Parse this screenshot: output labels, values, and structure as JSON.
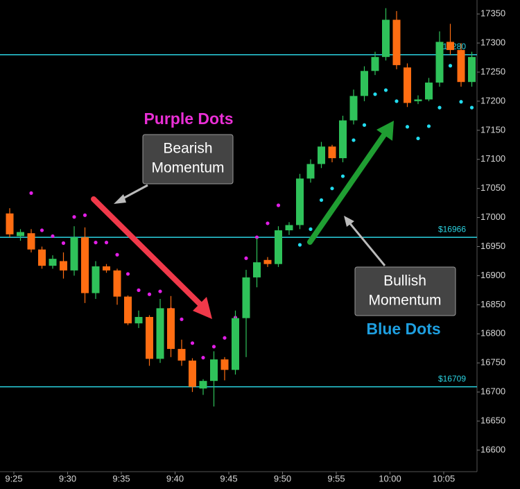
{
  "chart_data": {
    "type": "candlestick",
    "categories": [
      "9:25",
      null,
      null,
      null,
      null,
      "9:30",
      null,
      null,
      null,
      null,
      "9:35",
      null,
      null,
      null,
      null,
      "9:40",
      null,
      null,
      null,
      null,
      "9:45",
      null,
      null,
      null,
      null,
      "9:50",
      null,
      null,
      null,
      null,
      "9:55",
      null,
      null,
      null,
      null,
      "10:00",
      null,
      null,
      null,
      null,
      "10:05",
      null,
      null,
      null
    ],
    "open": [
      17007,
      16968,
      16973,
      16945,
      16917,
      16925,
      16909,
      16966,
      16870,
      16916,
      16909,
      16864,
      16818,
      16829,
      16757,
      16844,
      16774,
      16754,
      16706,
      16719,
      16756,
      16738,
      16827,
      16897,
      16927,
      16920,
      16978,
      16987,
      17067,
      17092,
      17122,
      17102,
      17167,
      17209,
      17252,
      17276,
      17340,
      17258,
      17200,
      17203,
      17232,
      17302,
      17288,
      17233
    ],
    "high": [
      17016,
      16980,
      16980,
      16950,
      16935,
      16940,
      16985,
      16983,
      16925,
      16920,
      16912,
      16866,
      16840,
      16832,
      16860,
      16865,
      16790,
      16758,
      16722,
      16770,
      16760,
      16840,
      16910,
      16965,
      16932,
      16985,
      16992,
      17075,
      17100,
      17130,
      17125,
      17175,
      17220,
      17260,
      17285,
      17360,
      17355,
      17265,
      17210,
      17240,
      17320,
      17333,
      17300,
      17285
    ],
    "low": [
      16966,
      16960,
      16940,
      16912,
      16912,
      16895,
      16900,
      16853,
      16860,
      16905,
      16850,
      16815,
      16810,
      16745,
      16750,
      16760,
      16745,
      16700,
      16695,
      16675,
      16720,
      16730,
      16760,
      16880,
      16915,
      16915,
      16970,
      16980,
      17060,
      17085,
      17095,
      17095,
      17160,
      17200,
      17245,
      17270,
      17255,
      17190,
      17195,
      17200,
      17225,
      17280,
      17225,
      17225
    ],
    "close": [
      16971,
      16975,
      16945,
      16917,
      16929,
      16909,
      16966,
      16870,
      16916,
      16909,
      16864,
      16818,
      16829,
      16757,
      16844,
      16774,
      16754,
      16709,
      16719,
      16756,
      16738,
      16827,
      16897,
      16923,
      16920,
      16978,
      16987,
      17067,
      17092,
      17122,
      17102,
      17167,
      17209,
      17252,
      17276,
      17340,
      17262,
      17197,
      17203,
      17232,
      17302,
      17288,
      17233,
      17276
    ],
    "up_color": "#2fc25a",
    "down_color": "#ff6d12",
    "bearish_dots": {
      "color": "#e11ee6",
      "values": [
        null,
        null,
        17042,
        16978,
        16968,
        16956,
        17001,
        17004,
        16957,
        16957,
        16936,
        16903,
        16875,
        16868,
        16873,
        16842,
        16825,
        16784,
        16759,
        16778,
        16793,
        16828,
        16930,
        16966,
        16990,
        17021,
        null,
        null,
        null,
        null,
        null,
        null,
        null,
        null,
        null,
        null,
        null,
        null,
        null,
        null,
        null,
        null,
        null,
        null
      ]
    },
    "bullish_dots": {
      "color": "#22dcef",
      "values": [
        null,
        null,
        null,
        null,
        null,
        null,
        null,
        null,
        null,
        null,
        null,
        null,
        null,
        null,
        null,
        null,
        null,
        null,
        null,
        null,
        null,
        null,
        null,
        null,
        null,
        null,
        null,
        16953,
        16980,
        17030,
        17050,
        17071,
        17133,
        17159,
        17212,
        17219,
        17200,
        17156,
        17136,
        17157,
        17189,
        17261,
        17199,
        17189
      ]
    },
    "levels": {
      "color": "#2bd4e2",
      "values": [
        {
          "value": 17280,
          "label": "$17280"
        },
        {
          "value": 16966,
          "label": "$16966"
        },
        {
          "value": 16709,
          "label": "$16709"
        }
      ]
    },
    "ylim": [
      16563,
      17374
    ],
    "yticks": [
      16600,
      16650,
      16700,
      16750,
      16800,
      16850,
      16900,
      16950,
      17000,
      17050,
      17100,
      17150,
      17200,
      17250,
      17300,
      17350
    ],
    "annotations": {
      "purple_title": "Purple Dots",
      "bearish_box": [
        "Bearish",
        "Momentum"
      ],
      "bullish_box": [
        "Bullish",
        "Momentum"
      ],
      "blue_title": "Blue Dots"
    }
  }
}
